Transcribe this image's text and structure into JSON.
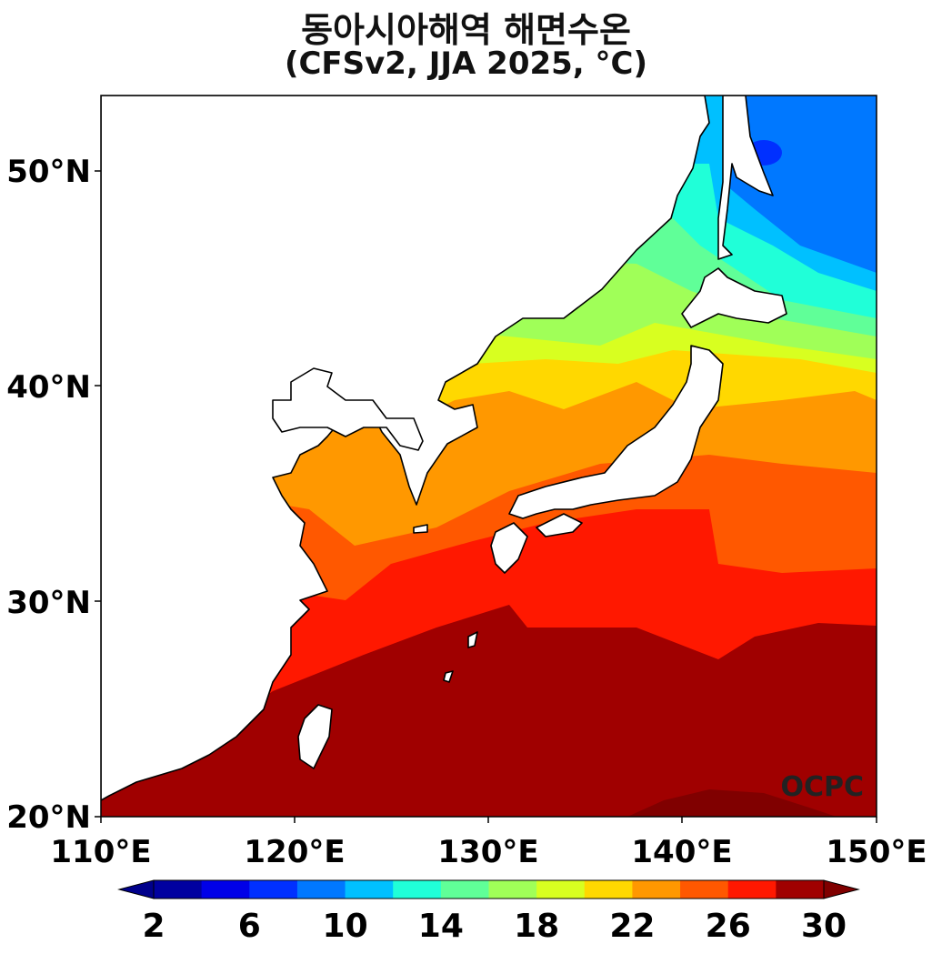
{
  "title": "동아시아해역 해면수온",
  "subtitle": "(CFSv2, JJA 2025, °C)",
  "watermark": "OCPC",
  "map": {
    "lon_range": [
      110,
      150
    ],
    "lat_range": [
      20,
      53.5
    ],
    "x_ticks": [
      "110°E",
      "120°E",
      "130°E",
      "140°E",
      "150°E"
    ],
    "y_ticks": [
      "20°N",
      "30°N",
      "40°N",
      "50°N"
    ]
  },
  "colorbar": {
    "levels": [
      2,
      4,
      6,
      8,
      10,
      12,
      14,
      16,
      18,
      20,
      22,
      24,
      26,
      28,
      30
    ],
    "colors": [
      "#0000a0",
      "#0000e8",
      "#0030ff",
      "#0078ff",
      "#00c0ff",
      "#20ffd8",
      "#60ff98",
      "#a0ff58",
      "#d8ff20",
      "#ffd800",
      "#ff9800",
      "#ff5800",
      "#ff1800",
      "#a00000"
    ],
    "under_color": "#00008b",
    "over_color": "#800000",
    "tick_labels": [
      "2",
      "6",
      "10",
      "14",
      "18",
      "22",
      "26",
      "30"
    ]
  }
}
